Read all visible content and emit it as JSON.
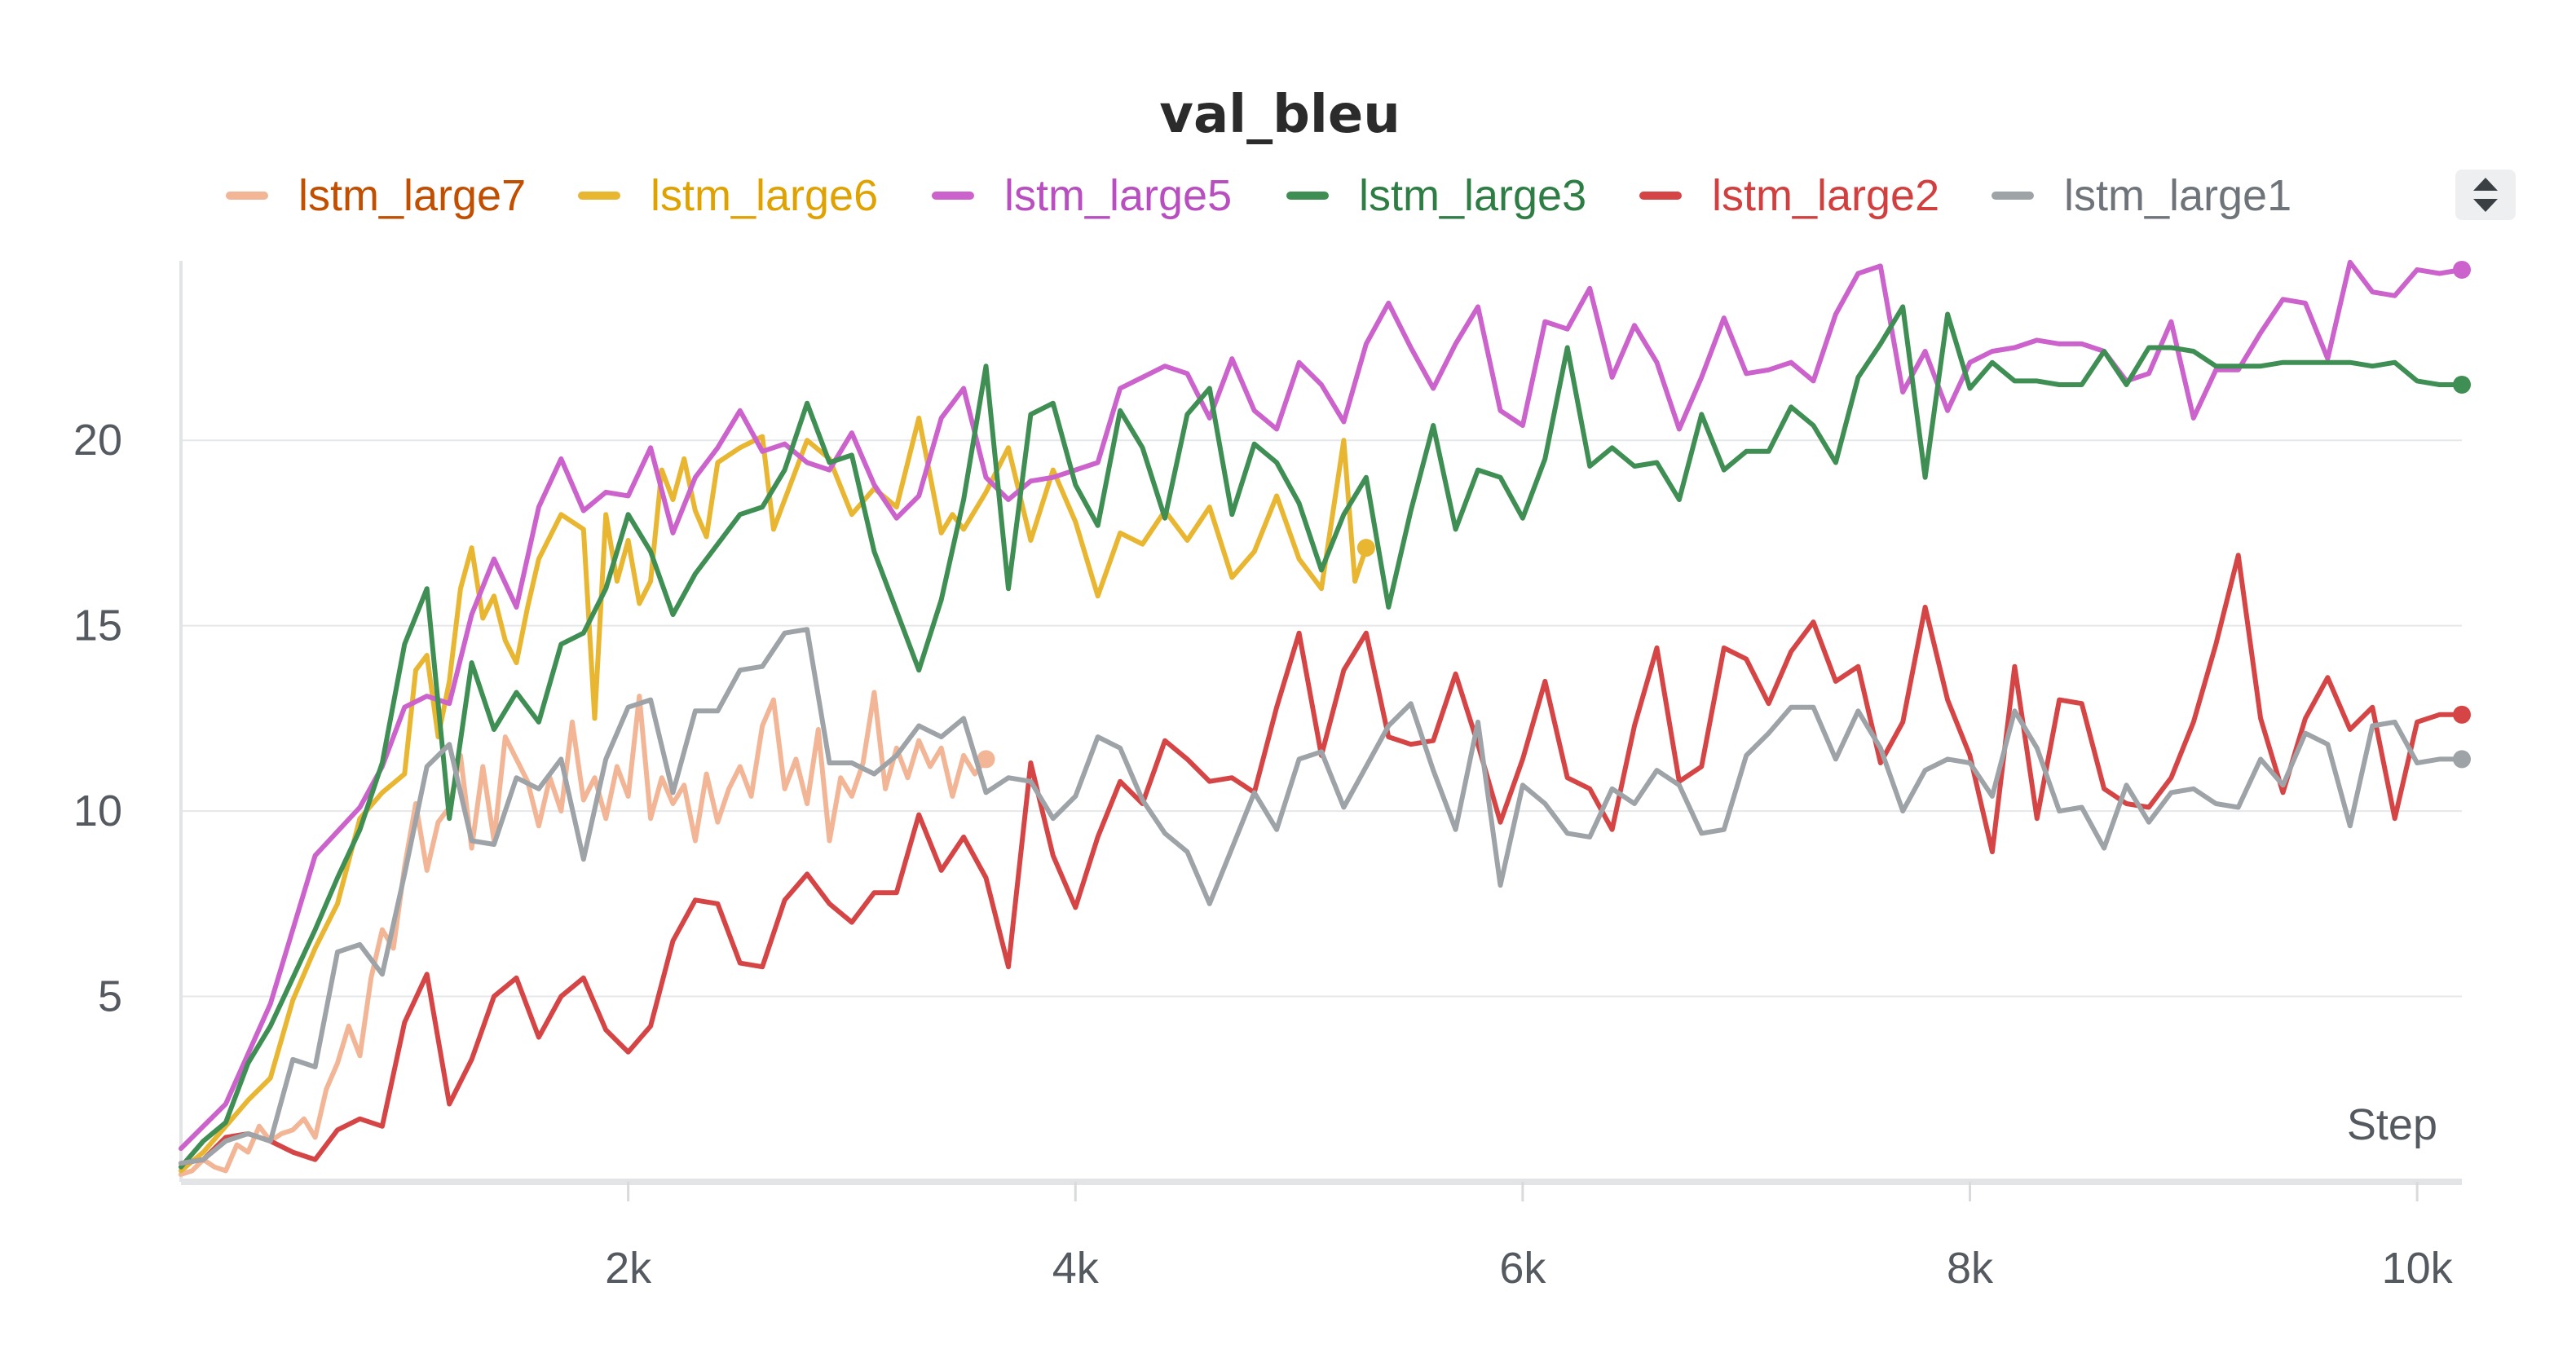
{
  "chart_data": {
    "type": "line",
    "title": "val_bleu",
    "xlabel": "Step",
    "ylabel": "",
    "xlim": [
      0,
      10200
    ],
    "ylim": [
      0,
      25.5
    ],
    "x_ticks": [
      2000,
      4000,
      6000,
      8000,
      10000
    ],
    "x_tick_labels": [
      "2k",
      "4k",
      "6k",
      "8k",
      "10k"
    ],
    "y_ticks": [
      5,
      10,
      15,
      20
    ],
    "y_tick_labels": [
      "5",
      "10",
      "15",
      "20"
    ],
    "grid": "horizontal",
    "legend_position": "top",
    "series": [
      {
        "name": "lstm_large7",
        "color": "#f2b596",
        "text_color": "#c24e00",
        "x": [
          0,
          50,
          100,
          150,
          200,
          250,
          300,
          350,
          400,
          450,
          500,
          550,
          600,
          650,
          700,
          750,
          800,
          850,
          900,
          950,
          1000,
          1050,
          1100,
          1150,
          1200,
          1250,
          1300,
          1350,
          1400,
          1450,
          1500,
          1550,
          1600,
          1650,
          1700,
          1750,
          1800,
          1850,
          1900,
          1950,
          2000,
          2050,
          2100,
          2150,
          2200,
          2250,
          2300,
          2350,
          2400,
          2450,
          2500,
          2550,
          2600,
          2650,
          2700,
          2750,
          2800,
          2850,
          2900,
          2950,
          3000,
          3050,
          3100,
          3150,
          3200,
          3250,
          3300,
          3350,
          3400,
          3450,
          3500,
          3550,
          3600
        ],
        "y": [
          0.2,
          0.3,
          0.6,
          0.4,
          0.3,
          1.0,
          0.8,
          1.5,
          1.1,
          1.3,
          1.4,
          1.7,
          1.2,
          2.5,
          3.2,
          4.2,
          3.4,
          5.5,
          6.8,
          6.3,
          8.5,
          10.2,
          8.4,
          9.7,
          10.1,
          11.5,
          9.0,
          11.2,
          9.2,
          12.0,
          11.4,
          10.8,
          9.6,
          10.9,
          10.0,
          12.4,
          10.3,
          10.9,
          9.8,
          11.2,
          10.4,
          13.1,
          9.8,
          10.9,
          10.2,
          10.7,
          9.2,
          11.0,
          9.7,
          10.6,
          11.2,
          10.4,
          12.3,
          13.0,
          10.6,
          11.4,
          10.2,
          12.2,
          9.2,
          10.9,
          10.4,
          11.3,
          13.2,
          10.6,
          11.7,
          10.9,
          11.9,
          11.2,
          11.7,
          10.4,
          11.5,
          11.0,
          11.4
        ]
      },
      {
        "name": "lstm_large6",
        "color": "#e8b631",
        "text_color": "#e0a200",
        "x": [
          0,
          100,
          200,
          300,
          400,
          500,
          600,
          700,
          800,
          900,
          1000,
          1050,
          1100,
          1150,
          1200,
          1250,
          1300,
          1350,
          1400,
          1450,
          1500,
          1550,
          1600,
          1700,
          1800,
          1850,
          1900,
          1950,
          2000,
          2050,
          2100,
          2150,
          2200,
          2250,
          2300,
          2350,
          2400,
          2500,
          2600,
          2650,
          2700,
          2800,
          2900,
          3000,
          3100,
          3200,
          3300,
          3400,
          3450,
          3500,
          3600,
          3700,
          3800,
          3900,
          4000,
          4100,
          4200,
          4300,
          4400,
          4500,
          4600,
          4700,
          4800,
          4900,
          5000,
          5100,
          5200,
          5250,
          5300
        ],
        "y": [
          0.3,
          0.8,
          1.5,
          2.2,
          2.8,
          4.9,
          6.3,
          7.5,
          9.8,
          10.5,
          11.0,
          13.8,
          14.2,
          12.0,
          13.5,
          16.0,
          17.1,
          15.2,
          15.8,
          14.6,
          14.0,
          15.5,
          16.8,
          18.0,
          17.6,
          12.5,
          18.0,
          16.2,
          17.3,
          15.6,
          16.2,
          19.2,
          18.4,
          19.5,
          18.1,
          17.4,
          19.4,
          19.8,
          20.1,
          17.6,
          18.4,
          20.0,
          19.5,
          18.0,
          18.7,
          18.2,
          20.6,
          17.5,
          18.0,
          17.6,
          18.6,
          19.8,
          17.3,
          19.2,
          17.8,
          15.8,
          17.5,
          17.2,
          18.1,
          17.3,
          18.2,
          16.3,
          17.0,
          18.5,
          16.8,
          16.0,
          20.0,
          16.2,
          17.1
        ]
      },
      {
        "name": "lstm_large5",
        "color": "#cc62cc",
        "text_color": "#b84ec0",
        "x": [
          0,
          200,
          400,
          600,
          800,
          900,
          1000,
          1100,
          1200,
          1300,
          1400,
          1500,
          1600,
          1700,
          1800,
          1900,
          2000,
          2100,
          2200,
          2300,
          2400,
          2500,
          2600,
          2700,
          2800,
          2900,
          3000,
          3100,
          3200,
          3300,
          3400,
          3500,
          3600,
          3700,
          3800,
          3900,
          4000,
          4100,
          4200,
          4300,
          4400,
          4500,
          4600,
          4700,
          4800,
          4900,
          5000,
          5100,
          5200,
          5300,
          5400,
          5500,
          5600,
          5700,
          5800,
          5900,
          6000,
          6100,
          6200,
          6300,
          6400,
          6500,
          6600,
          6700,
          6800,
          6900,
          7000,
          7100,
          7200,
          7300,
          7400,
          7500,
          7600,
          7700,
          7800,
          7900,
          8000,
          8100,
          8200,
          8300,
          8400,
          8500,
          8600,
          8700,
          8800,
          8900,
          9000,
          9100,
          9200,
          9300,
          9400,
          9500,
          9600,
          9700,
          9800,
          9900,
          10000,
          10100,
          10200
        ],
        "y": [
          0.9,
          2.1,
          4.8,
          8.8,
          10.1,
          11.2,
          12.8,
          13.1,
          12.9,
          15.3,
          16.8,
          15.5,
          18.2,
          19.5,
          18.1,
          18.6,
          18.5,
          19.8,
          17.5,
          19.0,
          19.8,
          20.8,
          19.7,
          19.9,
          19.4,
          19.2,
          20.2,
          18.8,
          17.9,
          18.5,
          20.6,
          21.4,
          19.0,
          18.4,
          18.9,
          19.0,
          19.2,
          19.4,
          21.4,
          21.7,
          22.0,
          21.8,
          20.6,
          22.2,
          20.8,
          20.3,
          22.1,
          21.5,
          20.5,
          22.6,
          23.7,
          22.5,
          21.4,
          22.6,
          23.6,
          20.8,
          20.4,
          23.2,
          23.0,
          24.1,
          21.7,
          23.1,
          22.1,
          20.3,
          21.7,
          23.3,
          21.8,
          21.9,
          22.1,
          21.6,
          23.4,
          24.5,
          24.7,
          21.3,
          22.4,
          20.8,
          22.1,
          22.4,
          22.5,
          22.7,
          22.6,
          22.6,
          22.4,
          21.6,
          21.8,
          23.2,
          20.6,
          21.9,
          21.9,
          22.9,
          23.8,
          23.7,
          22.2,
          24.8,
          24.0,
          23.9,
          24.6,
          24.5,
          24.6
        ]
      },
      {
        "name": "lstm_large3",
        "color": "#3f8f55",
        "text_color": "#2e7d44",
        "x": [
          0,
          100,
          200,
          300,
          400,
          500,
          600,
          700,
          800,
          900,
          1000,
          1100,
          1200,
          1300,
          1400,
          1500,
          1600,
          1700,
          1800,
          1900,
          2000,
          2100,
          2200,
          2300,
          2400,
          2500,
          2600,
          2700,
          2800,
          2900,
          3000,
          3100,
          3200,
          3300,
          3400,
          3500,
          3600,
          3700,
          3800,
          3900,
          4000,
          4100,
          4200,
          4300,
          4400,
          4500,
          4600,
          4700,
          4800,
          4900,
          5000,
          5100,
          5200,
          5300,
          5400,
          5500,
          5600,
          5700,
          5800,
          5900,
          6000,
          6100,
          6200,
          6300,
          6400,
          6500,
          6600,
          6700,
          6800,
          6900,
          7000,
          7100,
          7200,
          7300,
          7400,
          7500,
          7600,
          7700,
          7800,
          7900,
          8000,
          8100,
          8200,
          8300,
          8400,
          8500,
          8600,
          8700,
          8800,
          8900,
          9000,
          9100,
          9200,
          9300,
          9400,
          9500,
          9600,
          9700,
          9800,
          9900,
          10000,
          10100,
          10200
        ],
        "y": [
          0.4,
          1.1,
          1.6,
          3.2,
          4.2,
          5.5,
          6.8,
          8.2,
          9.5,
          11.3,
          14.5,
          16.0,
          9.8,
          14.0,
          12.2,
          13.2,
          12.4,
          14.5,
          14.8,
          16.0,
          18.0,
          17.0,
          15.3,
          16.4,
          17.2,
          18.0,
          18.2,
          19.2,
          21.0,
          19.4,
          19.6,
          17.0,
          15.4,
          13.8,
          15.7,
          18.4,
          22.0,
          16.0,
          20.7,
          21.0,
          18.8,
          17.7,
          20.8,
          19.8,
          17.9,
          20.7,
          21.4,
          18.0,
          19.9,
          19.4,
          18.3,
          16.5,
          18.0,
          19.0,
          15.5,
          18.1,
          20.4,
          17.6,
          19.2,
          19.0,
          17.9,
          19.5,
          22.5,
          19.3,
          19.8,
          19.3,
          19.4,
          18.4,
          20.7,
          19.2,
          19.7,
          19.7,
          20.9,
          20.4,
          19.4,
          21.7,
          22.6,
          23.6,
          19.0,
          23.4,
          21.4,
          22.1,
          21.6,
          21.6,
          21.5,
          21.5,
          22.4,
          21.5,
          22.5,
          22.5,
          22.4,
          22.0,
          22.0,
          22.0,
          22.1,
          22.1,
          22.1,
          22.1,
          22.0,
          22.1,
          21.6,
          21.5,
          21.5
        ]
      },
      {
        "name": "lstm_large2",
        "color": "#d64545",
        "text_color": "#d13f3f",
        "x": [
          0,
          100,
          200,
          300,
          400,
          500,
          600,
          700,
          800,
          900,
          1000,
          1100,
          1200,
          1300,
          1400,
          1500,
          1600,
          1700,
          1800,
          1900,
          2000,
          2100,
          2200,
          2300,
          2400,
          2500,
          2600,
          2700,
          2800,
          2900,
          3000,
          3100,
          3200,
          3300,
          3400,
          3500,
          3600,
          3700,
          3800,
          3900,
          4000,
          4100,
          4200,
          4300,
          4400,
          4500,
          4600,
          4700,
          4800,
          4900,
          5000,
          5100,
          5200,
          5300,
          5400,
          5500,
          5600,
          5700,
          5800,
          5900,
          6000,
          6100,
          6200,
          6300,
          6400,
          6500,
          6600,
          6700,
          6800,
          6900,
          7000,
          7100,
          7200,
          7300,
          7400,
          7500,
          7600,
          7700,
          7800,
          7900,
          8000,
          8100,
          8200,
          8300,
          8400,
          8500,
          8600,
          8700,
          8800,
          8900,
          9000,
          9100,
          9200,
          9300,
          9400,
          9500,
          9600,
          9700,
          9800,
          9900,
          10000,
          10100,
          10200
        ],
        "y": [
          0.5,
          0.6,
          1.2,
          1.3,
          1.1,
          0.8,
          0.6,
          1.4,
          1.7,
          1.5,
          4.3,
          5.6,
          2.1,
          3.3,
          5.0,
          5.5,
          3.9,
          5.0,
          5.5,
          4.1,
          3.5,
          4.2,
          6.5,
          7.6,
          7.5,
          5.9,
          5.8,
          7.6,
          8.3,
          7.5,
          7.0,
          7.8,
          7.8,
          9.9,
          8.4,
          9.3,
          8.2,
          5.8,
          11.3,
          8.8,
          7.4,
          9.3,
          10.8,
          10.2,
          11.9,
          11.4,
          10.8,
          10.9,
          10.5,
          12.8,
          14.8,
          11.5,
          13.8,
          14.8,
          12.0,
          11.8,
          11.9,
          13.7,
          11.8,
          9.7,
          11.4,
          13.5,
          10.9,
          10.6,
          9.5,
          12.3,
          14.4,
          10.8,
          11.2,
          14.4,
          14.1,
          12.9,
          14.3,
          15.1,
          13.5,
          13.9,
          11.3,
          12.4,
          15.5,
          13.0,
          11.5,
          8.9,
          13.9,
          9.8,
          13.0,
          12.9,
          10.6,
          10.2,
          10.1,
          10.9,
          12.4,
          14.5,
          16.9,
          12.5,
          10.5,
          12.5,
          13.6,
          12.2,
          12.8,
          9.8,
          12.4,
          12.6,
          12.6
        ]
      },
      {
        "name": "lstm_large1",
        "color": "#9ea3a8",
        "text_color": "#6e7479",
        "x": [
          0,
          100,
          200,
          300,
          400,
          500,
          600,
          700,
          800,
          900,
          1000,
          1100,
          1200,
          1300,
          1400,
          1500,
          1600,
          1700,
          1800,
          1900,
          2000,
          2100,
          2200,
          2300,
          2400,
          2500,
          2600,
          2700,
          2800,
          2900,
          3000,
          3100,
          3200,
          3300,
          3400,
          3500,
          3600,
          3700,
          3800,
          3900,
          4000,
          4100,
          4200,
          4300,
          4400,
          4500,
          4600,
          4700,
          4800,
          4900,
          5000,
          5100,
          5200,
          5300,
          5400,
          5500,
          5600,
          5700,
          5800,
          5900,
          6000,
          6100,
          6200,
          6300,
          6400,
          6500,
          6600,
          6700,
          6800,
          6900,
          7000,
          7100,
          7200,
          7300,
          7400,
          7500,
          7600,
          7700,
          7800,
          7900,
          8000,
          8100,
          8200,
          8300,
          8400,
          8500,
          8600,
          8700,
          8800,
          8900,
          9000,
          9100,
          9200,
          9300,
          9400,
          9500,
          9600,
          9700,
          9800,
          9900,
          10000,
          10100,
          10200
        ],
        "y": [
          0.5,
          0.6,
          1.1,
          1.3,
          1.1,
          3.3,
          3.1,
          6.2,
          6.4,
          5.6,
          8.3,
          11.2,
          11.8,
          9.2,
          9.1,
          10.9,
          10.6,
          11.4,
          8.7,
          11.4,
          12.8,
          13.0,
          10.5,
          12.7,
          12.7,
          13.8,
          13.9,
          14.8,
          14.9,
          11.3,
          11.3,
          11.0,
          11.5,
          12.3,
          12.0,
          12.5,
          10.5,
          10.9,
          10.8,
          9.8,
          10.4,
          12.0,
          11.7,
          10.3,
          9.4,
          8.9,
          7.5,
          9.0,
          10.5,
          9.5,
          11.4,
          11.6,
          10.1,
          11.2,
          12.3,
          12.9,
          11.1,
          9.5,
          12.4,
          8.0,
          10.7,
          10.2,
          9.4,
          9.3,
          10.6,
          10.2,
          11.1,
          10.7,
          9.4,
          9.5,
          11.5,
          12.1,
          12.8,
          12.8,
          11.4,
          12.7,
          11.7,
          10.0,
          11.1,
          11.4,
          11.3,
          10.4,
          12.7,
          11.7,
          10.0,
          10.1,
          9.0,
          10.7,
          9.7,
          10.5,
          10.6,
          10.2,
          10.1,
          11.4,
          10.7,
          12.1,
          11.8,
          9.6,
          12.3,
          12.4,
          11.3,
          11.4,
          11.4
        ]
      }
    ]
  },
  "legend": {
    "items": [
      {
        "label": "lstm_large7"
      },
      {
        "label": "lstm_large6"
      },
      {
        "label": "lstm_large5"
      },
      {
        "label": "lstm_large3"
      },
      {
        "label": "lstm_large2"
      },
      {
        "label": "lstm_large1"
      }
    ],
    "scroll_icon": "sort-arrows-icon"
  }
}
